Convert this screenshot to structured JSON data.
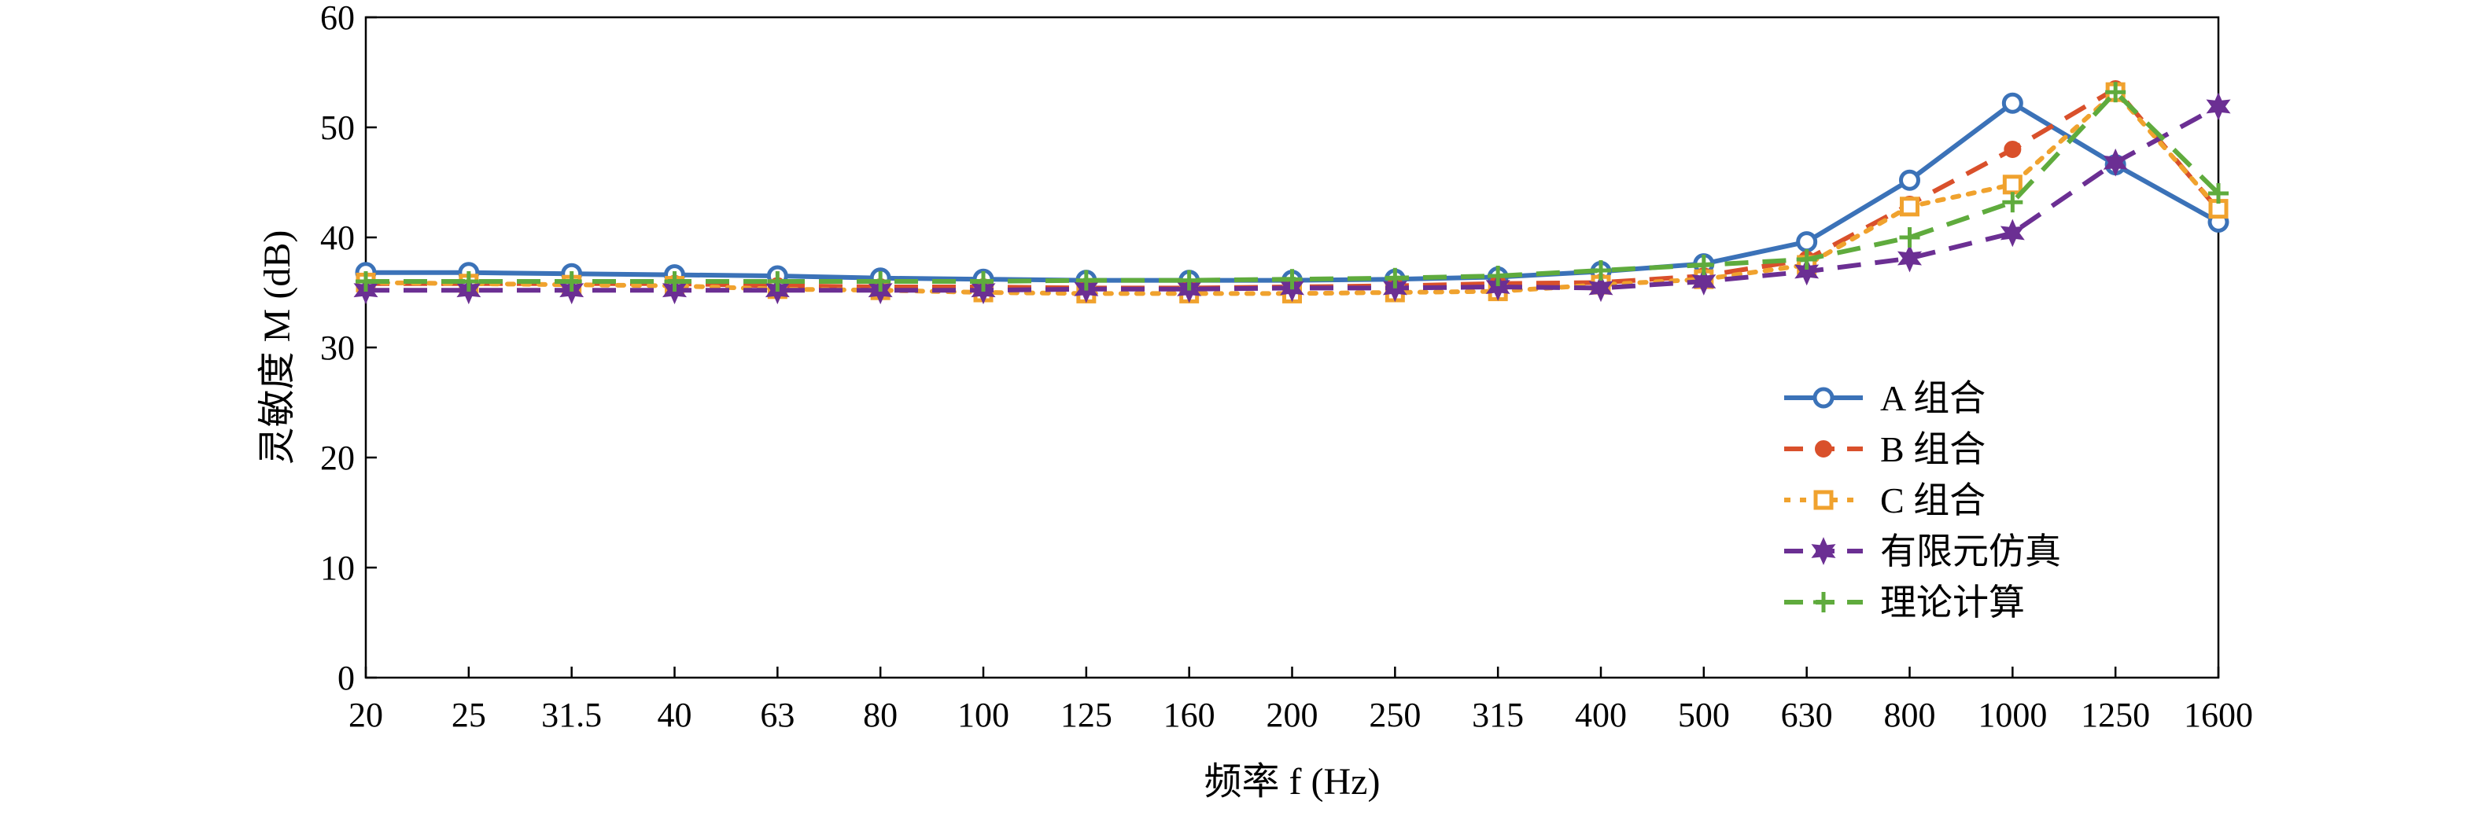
{
  "chart_data": {
    "type": "line",
    "xlabel": "频率 f (Hz)",
    "ylabel": "灵敏度 M (dB)",
    "categories": [
      "20",
      "25",
      "31.5",
      "40",
      "63",
      "80",
      "100",
      "125",
      "160",
      "200",
      "250",
      "315",
      "400",
      "500",
      "630",
      "800",
      "1000",
      "1250",
      "1600"
    ],
    "ylim": [
      0,
      60
    ],
    "yticks": [
      0,
      10,
      20,
      30,
      40,
      50,
      60
    ],
    "grid": false,
    "legend_position": "center-right",
    "series": [
      {
        "name": "A 组合",
        "color": "#3b72b8",
        "dash": "solid",
        "marker": "circle",
        "values": [
          36.8,
          36.8,
          36.7,
          36.6,
          36.5,
          36.3,
          36.2,
          36.1,
          36.1,
          36.1,
          36.2,
          36.4,
          36.9,
          37.6,
          39.6,
          45.2,
          52.2,
          46.6,
          41.4
        ]
      },
      {
        "name": "B 组合",
        "color": "#d9502b",
        "dash": "dash",
        "marker": "dot",
        "values": [
          35.8,
          35.8,
          35.8,
          35.8,
          35.6,
          35.5,
          35.5,
          35.4,
          35.4,
          35.5,
          35.6,
          35.8,
          35.9,
          36.5,
          38.0,
          43.0,
          48.0,
          53.5,
          42.5
        ]
      },
      {
        "name": "C 组合",
        "color": "#f0a22e",
        "dash": "dot",
        "marker": "square",
        "values": [
          35.9,
          35.8,
          35.7,
          35.6,
          35.3,
          35.2,
          35.0,
          34.9,
          34.9,
          34.9,
          35.0,
          35.1,
          35.7,
          36.2,
          37.5,
          42.8,
          44.8,
          53.2,
          42.6
        ]
      },
      {
        "name": "有限元仿真",
        "color": "#6b2f93",
        "dash": "dash",
        "marker": "star",
        "values": [
          35.2,
          35.2,
          35.2,
          35.2,
          35.2,
          35.2,
          35.2,
          35.3,
          35.3,
          35.4,
          35.4,
          35.5,
          35.4,
          36.0,
          36.9,
          38.1,
          40.4,
          46.8,
          51.9
        ]
      },
      {
        "name": "理论计算",
        "color": "#5fab3d",
        "dash": "dash",
        "marker": "plus",
        "values": [
          36.0,
          36.0,
          36.0,
          36.0,
          36.0,
          36.0,
          36.0,
          36.1,
          36.1,
          36.2,
          36.3,
          36.5,
          37.0,
          37.5,
          38.0,
          40.0,
          43.2,
          53.2,
          44.0
        ]
      }
    ]
  }
}
